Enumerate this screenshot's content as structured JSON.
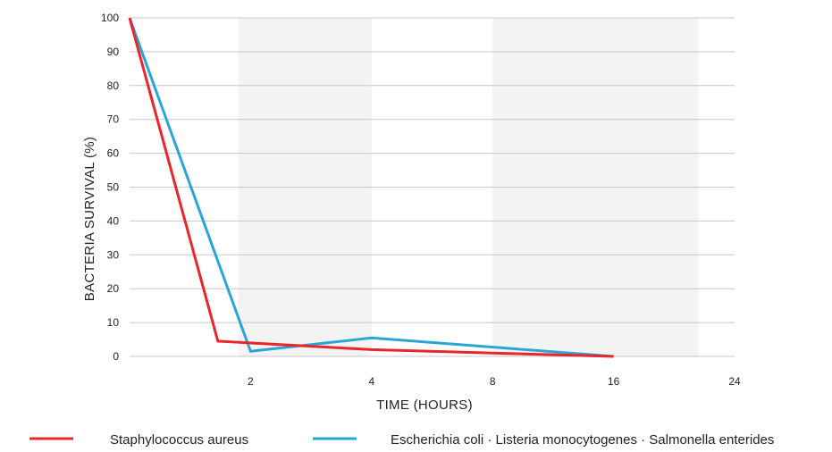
{
  "chart_data": {
    "type": "line",
    "title": "",
    "xlabel": "TIME (HOURS)",
    "ylabel": "BACTERIA SURVIVAL (%)",
    "ylim": [
      0,
      100
    ],
    "yticks": [
      "0",
      "10",
      "20",
      "30",
      "40",
      "50",
      "60",
      "70",
      "80",
      "90",
      "100"
    ],
    "x_categories": [
      "0",
      "2",
      "4",
      "8",
      "16",
      "24"
    ],
    "x_tick_labels": [
      "",
      "2",
      "4",
      "8",
      "16",
      "24"
    ],
    "grid": "horizontal",
    "shaded_bands": [
      [
        0.9,
        2
      ],
      [
        3,
        4.7
      ]
    ],
    "legend_position": "bottom",
    "series": [
      {
        "name": "Staphylococcus aureus",
        "color": "#e8262c",
        "points": [
          [
            0,
            100
          ],
          [
            0.73,
            4.5
          ],
          [
            2,
            2
          ],
          [
            4,
            0
          ]
        ]
      },
      {
        "name": "Escherichia coli · Listeria monocytogenes · Salmonella enterides",
        "color": "#2ba4d8",
        "points": [
          [
            0,
            100
          ],
          [
            1,
            1.5
          ],
          [
            2,
            5.5
          ],
          [
            4,
            0
          ]
        ]
      }
    ]
  }
}
